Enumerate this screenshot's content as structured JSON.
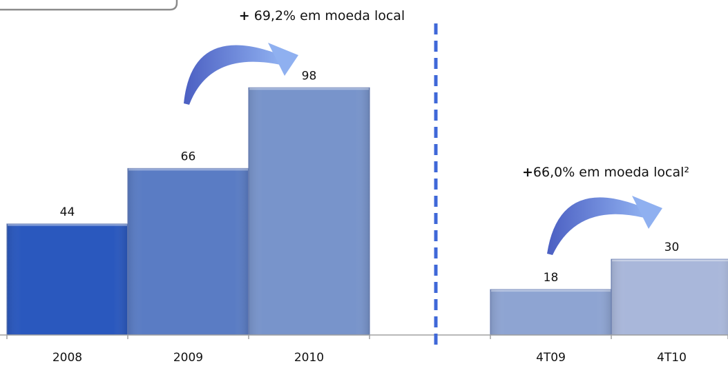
{
  "chart_data": {
    "type": "bar",
    "categories": [
      "2008",
      "2009",
      "2010",
      "4T09",
      "4T10"
    ],
    "values": [
      44,
      66,
      98,
      18,
      30
    ],
    "groups": [
      {
        "categories": [
          "2008",
          "2009",
          "2010"
        ]
      },
      {
        "categories": [
          "4T09",
          "4T10"
        ]
      }
    ],
    "annotations": [
      {
        "bold_prefix": "+",
        "text": " 69,2% em moeda local",
        "from": "2008",
        "to": "2010"
      },
      {
        "bold_prefix": "+",
        "text": "66,0% em moeda local²",
        "from": "4T09",
        "to": "4T10"
      }
    ],
    "colors": {
      "2008": "#2a58be",
      "2009": "#5a7cc4",
      "2010": "#7894cb",
      "4T09": "#8ea4d2",
      "4T10": "#a9b7da",
      "arrow": "#6d82d4",
      "divider": "#3f68d8"
    },
    "title": "",
    "xlabel": "",
    "ylabel": "",
    "ylim": [
      0,
      100
    ],
    "grid": false,
    "legend": false
  }
}
